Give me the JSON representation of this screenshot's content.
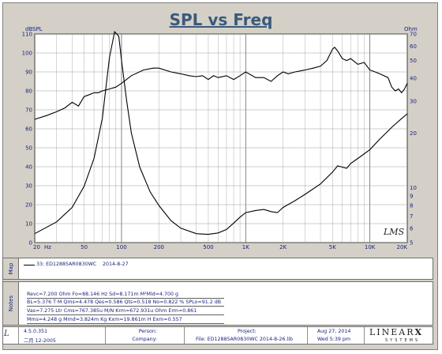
{
  "chart_data": {
    "type": "line",
    "title": "SPL vs Freq",
    "ylabel_left": "dBSPL",
    "ylabel_right": "Ohm",
    "x_scale": "log",
    "xlim": [
      20,
      20000
    ],
    "ylim_left": [
      0,
      110
    ],
    "ylim_right": [
      5,
      70
    ],
    "y_scale_right": "log",
    "grid": true,
    "x_ticks": [
      {
        "value": 20,
        "label": "20"
      },
      {
        "value": 50,
        "label": "50"
      },
      {
        "value": 100,
        "label": "100"
      },
      {
        "value": 200,
        "label": "200"
      },
      {
        "value": 500,
        "label": "500"
      },
      {
        "value": 1000,
        "label": "1K"
      },
      {
        "value": 2000,
        "label": "2K"
      },
      {
        "value": 5000,
        "label": "5K"
      },
      {
        "value": 10000,
        "label": "10K"
      },
      {
        "value": 20000,
        "label": "20K"
      }
    ],
    "x_unit_label": "Hz",
    "y_left_ticks": [
      110,
      100,
      90,
      80,
      70,
      60,
      50,
      40,
      30,
      20,
      10,
      0
    ],
    "y_right_ticks": [
      {
        "value": 70,
        "label": "70"
      },
      {
        "value": 60,
        "label": "60"
      },
      {
        "value": 50,
        "label": "50"
      },
      {
        "value": 40,
        "label": "40"
      },
      {
        "value": 30,
        "label": "30"
      },
      {
        "value": 20,
        "label": "20"
      },
      {
        "value": 10,
        "label": "10"
      },
      {
        "value": 9,
        "label": "9"
      },
      {
        "value": 8,
        "label": "8"
      },
      {
        "value": 7,
        "label": "7"
      },
      {
        "value": 6,
        "label": "6"
      },
      {
        "value": 5,
        "label": "5"
      }
    ],
    "series": [
      {
        "axis": "left",
        "points": [
          [
            20,
            65
          ],
          [
            25,
            67
          ],
          [
            30,
            69
          ],
          [
            35,
            71
          ],
          [
            40,
            74
          ],
          [
            45,
            72
          ],
          [
            50,
            77
          ],
          [
            55,
            78
          ],
          [
            60,
            79
          ],
          [
            65,
            79
          ],
          [
            70,
            80
          ],
          [
            80,
            81
          ],
          [
            90,
            82
          ],
          [
            100,
            84
          ],
          [
            120,
            88
          ],
          [
            150,
            91
          ],
          [
            180,
            92
          ],
          [
            200,
            92
          ],
          [
            250,
            90
          ],
          [
            300,
            89
          ],
          [
            350,
            88
          ],
          [
            400,
            87.5
          ],
          [
            450,
            88
          ],
          [
            500,
            86
          ],
          [
            550,
            88
          ],
          [
            600,
            87
          ],
          [
            700,
            88
          ],
          [
            800,
            86
          ],
          [
            900,
            88
          ],
          [
            1000,
            90
          ],
          [
            1200,
            87
          ],
          [
            1400,
            87
          ],
          [
            1600,
            85
          ],
          [
            1800,
            88
          ],
          [
            2000,
            90
          ],
          [
            2200,
            89
          ],
          [
            2500,
            90
          ],
          [
            3000,
            91
          ],
          [
            3500,
            92
          ],
          [
            4000,
            93
          ],
          [
            4500,
            96
          ],
          [
            5000,
            102
          ],
          [
            5200,
            103
          ],
          [
            5500,
            101
          ],
          [
            6000,
            97
          ],
          [
            6500,
            96
          ],
          [
            7000,
            97
          ],
          [
            8000,
            94
          ],
          [
            9000,
            95
          ],
          [
            10000,
            91
          ],
          [
            11000,
            90
          ],
          [
            12000,
            89
          ],
          [
            14000,
            87
          ],
          [
            15000,
            82
          ],
          [
            16000,
            80
          ],
          [
            17000,
            81
          ],
          [
            18000,
            79
          ],
          [
            19000,
            81
          ],
          [
            20000,
            84
          ]
        ]
      },
      {
        "axis": "right",
        "points": [
          [
            20,
            5.6
          ],
          [
            30,
            6.5
          ],
          [
            40,
            7.8
          ],
          [
            50,
            10.2
          ],
          [
            60,
            14.5
          ],
          [
            70,
            24
          ],
          [
            80,
            52
          ],
          [
            88,
            72
          ],
          [
            95,
            68
          ],
          [
            100,
            50
          ],
          [
            110,
            30
          ],
          [
            120,
            20
          ],
          [
            140,
            13
          ],
          [
            170,
            9.5
          ],
          [
            200,
            8
          ],
          [
            250,
            6.6
          ],
          [
            300,
            6.0
          ],
          [
            400,
            5.6
          ],
          [
            500,
            5.55
          ],
          [
            600,
            5.65
          ],
          [
            700,
            5.9
          ],
          [
            800,
            6.4
          ],
          [
            900,
            6.9
          ],
          [
            1000,
            7.3
          ],
          [
            1200,
            7.5
          ],
          [
            1400,
            7.6
          ],
          [
            1600,
            7.4
          ],
          [
            1800,
            7.3
          ],
          [
            2000,
            7.8
          ],
          [
            2500,
            8.5
          ],
          [
            3000,
            9.2
          ],
          [
            4000,
            10.5
          ],
          [
            5000,
            12.2
          ],
          [
            5500,
            13.2
          ],
          [
            6500,
            12.8
          ],
          [
            7000,
            13.6
          ],
          [
            8000,
            14.5
          ],
          [
            10000,
            16.2
          ],
          [
            12000,
            18.5
          ],
          [
            15000,
            21.5
          ],
          [
            18000,
            24
          ],
          [
            20000,
            25.5
          ]
        ]
      }
    ]
  },
  "legend_panel": {
    "tab_label": "Map",
    "entry": "33: ED12885AR0830WC",
    "date": "2014-8-27"
  },
  "notes_panel": {
    "tab_label": "Notes",
    "lines": [
      "Revc=7.200 Ohm  Fo=88.146 Hz  Sd=8.171m M²Mld=4.700 g",
      "BL=5.376 T·M  Qms=4.478  Qes=0.586  Qts=0.518  No=0.822 %  SPLo=91.2 dB",
      "Vas=7.275 Ltr  Cms=767.385u M/N  Krm=672.931u Ohm  Erm=0.861",
      "Mms=4.248 g  Mmd=3.824m Kg  Kxm=19.861m H  Exm=0.557"
    ]
  },
  "footer": {
    "version": "4.5.0.351",
    "version_date": "二月 12-2005",
    "person_label": "Person:",
    "company_label": "Company:",
    "project_label": "Project:",
    "file_line": "File: ED12885AR0830WC   2014-8-26.lib",
    "date": "Aug 27, 2014",
    "time": "Wed   5:39 pm",
    "brand": "LINEAR",
    "brand_sub": "SYSTEMS"
  },
  "logo": {
    "text": "LMS"
  },
  "colors": {
    "axis_text": "#1a237e",
    "title": "#3a5a7a",
    "plot_bg": "#ffffff",
    "grid": "#9a9a9a",
    "curve": "#000000",
    "frame": "#d4d0c8"
  }
}
